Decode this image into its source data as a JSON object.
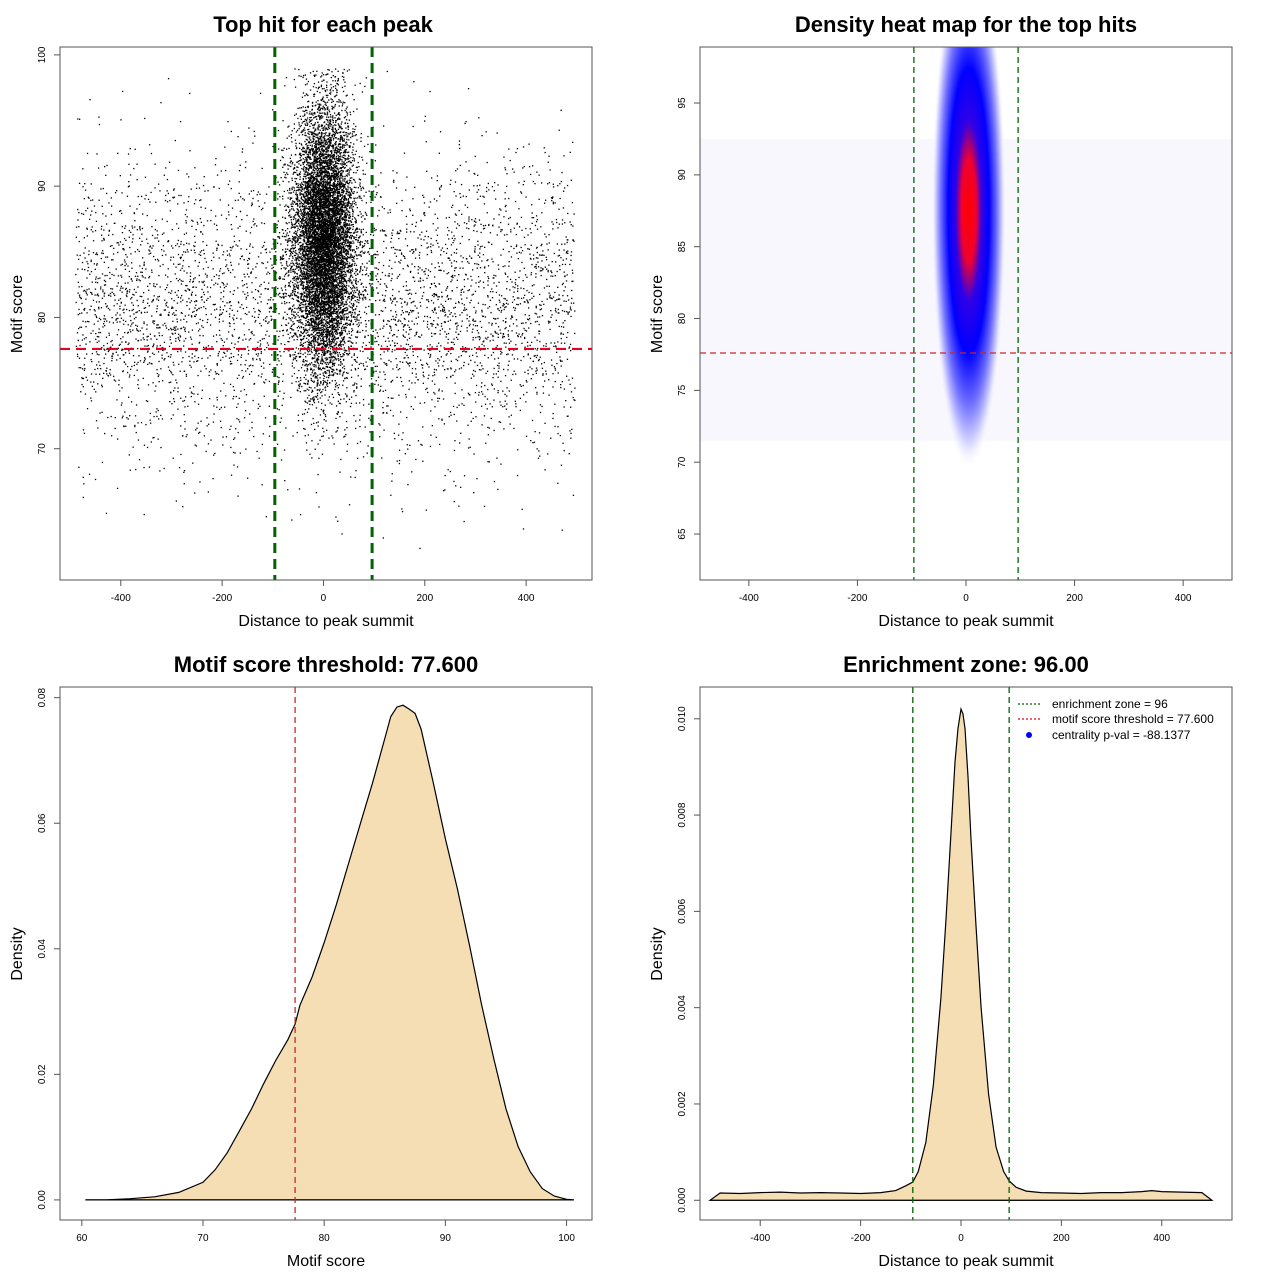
{
  "chart_data": [
    {
      "id": "p1",
      "type": "scatter",
      "title": "Top hit for each peak",
      "xlabel": "Distance to peak summit",
      "ylabel": "Motif score",
      "xlim": [
        -520,
        530
      ],
      "ylim": [
        60,
        100.6
      ],
      "xticks": [
        -400,
        -200,
        0,
        200,
        400
      ],
      "xtick_labels": [
        "-400",
        "-200",
        "0",
        "200",
        "400"
      ],
      "yticks": [
        70,
        80,
        90,
        100
      ],
      "ytick_labels": [
        "70",
        "80",
        "90",
        "100"
      ],
      "point_groups": [
        {
          "name": "",
          "x_center": 0,
          "x_sd": 30,
          "y_center": 86,
          "y_sd": 5,
          "count": 9000
        },
        {
          "name": "",
          "x_range": [
            -490,
            495
          ],
          "y_center": 81,
          "y_sd": 5.5,
          "count": 4500
        }
      ],
      "hlines": [
        {
          "y": 77.6,
          "color": "#e8001c",
          "style": "dashed"
        }
      ],
      "vlines": [
        {
          "x": -96,
          "color": "#006400",
          "style": "dashed"
        },
        {
          "x": 96,
          "color": "#006400",
          "style": "dashed"
        }
      ]
    },
    {
      "id": "p2",
      "type": "heatmap",
      "title": "Density heat map for the top hits",
      "xlabel": "Distance to peak summit",
      "ylabel": "Motif score",
      "xlim": [
        -490,
        490
      ],
      "ylim": [
        61.8,
        98.9
      ],
      "xticks": [
        -400,
        -200,
        0,
        200,
        400
      ],
      "xtick_labels": [
        "-400",
        "-200",
        "0",
        "200",
        "400"
      ],
      "yticks": [
        65,
        70,
        75,
        80,
        85,
        90,
        95
      ],
      "ytick_labels": [
        "65",
        "70",
        "75",
        "80",
        "85",
        "90",
        "95"
      ],
      "density_peak": {
        "x": 5,
        "y": 87.5,
        "x_sd": 30,
        "y_sd": 5
      },
      "colors": [
        "#ffffff",
        "#0000ff",
        "#ff0000"
      ],
      "hlines": [
        {
          "y": 77.6,
          "color": "#cd2626",
          "style": "dashed"
        }
      ],
      "vlines": [
        {
          "x": -96,
          "color": "#006400",
          "style": "dashed"
        },
        {
          "x": 96,
          "color": "#006400",
          "style": "dashed"
        }
      ]
    },
    {
      "id": "p3",
      "type": "area",
      "title": "Motif score threshold: 77.600",
      "xlabel": "Motif score",
      "ylabel": "Density",
      "xlim": [
        58.2,
        102.1
      ],
      "ylim": [
        -0.0032,
        0.0817
      ],
      "xticks": [
        60,
        70,
        80,
        90,
        100
      ],
      "xtick_labels": [
        "60",
        "70",
        "80",
        "90",
        "100"
      ],
      "yticks": [
        0,
        0.02,
        0.04,
        0.06,
        0.08
      ],
      "ytick_labels": [
        "0.00",
        "0.02",
        "0.04",
        "0.06",
        "0.08"
      ],
      "fill_color": "#f5deb3",
      "x": [
        60.3,
        62,
        64,
        66,
        68,
        70,
        71,
        72,
        73,
        74,
        75,
        76,
        77,
        77.6,
        78,
        79,
        80,
        81,
        82,
        83,
        84,
        85,
        85.5,
        86,
        86.5,
        87,
        87.5,
        88,
        89,
        90,
        91,
        92,
        93,
        94,
        95,
        96,
        97,
        98,
        99,
        100,
        100.6
      ],
      "y": [
        0,
        0,
        0.0002,
        0.0005,
        0.0012,
        0.0028,
        0.0048,
        0.0075,
        0.011,
        0.0145,
        0.0185,
        0.0222,
        0.0255,
        0.028,
        0.031,
        0.0355,
        0.041,
        0.047,
        0.0535,
        0.06,
        0.0665,
        0.0735,
        0.077,
        0.0785,
        0.0788,
        0.0782,
        0.0775,
        0.075,
        0.0665,
        0.0575,
        0.0495,
        0.0405,
        0.031,
        0.0225,
        0.0145,
        0.0085,
        0.0045,
        0.0018,
        0.0006,
        0.0001,
        0
      ],
      "vlines": [
        {
          "x": 77.6,
          "color": "#cd2626",
          "style": "dashed"
        }
      ]
    },
    {
      "id": "p4",
      "type": "area",
      "title": "Enrichment zone: 96.00",
      "xlabel": "Distance to peak summit",
      "ylabel": "Density",
      "xlim": [
        -520,
        540
      ],
      "ylim": [
        -0.00041,
        0.01066
      ],
      "xticks": [
        -400,
        -200,
        0,
        200,
        400
      ],
      "xtick_labels": [
        "-400",
        "-200",
        "0",
        "200",
        "400"
      ],
      "yticks": [
        0,
        0.002,
        0.004,
        0.006,
        0.008,
        0.01
      ],
      "ytick_labels": [
        "0.000",
        "0.002",
        "0.004",
        "0.006",
        "0.008",
        "0.010"
      ],
      "fill_color": "#f5deb3",
      "x": [
        -500,
        -480,
        -440,
        -400,
        -360,
        -320,
        -280,
        -240,
        -200,
        -160,
        -130,
        -110,
        -96,
        -85,
        -70,
        -55,
        -40,
        -30,
        -20,
        -12,
        -6,
        0,
        4,
        8,
        14,
        20,
        30,
        40,
        55,
        70,
        85,
        96,
        110,
        130,
        160,
        200,
        240,
        280,
        320,
        360,
        380,
        400,
        440,
        480,
        500
      ],
      "y": [
        0,
        0.00015,
        0.00014,
        0.00016,
        0.00017,
        0.00015,
        0.00016,
        0.00015,
        0.00014,
        0.00016,
        0.0002,
        0.0003,
        0.00038,
        0.0006,
        0.0012,
        0.0024,
        0.0042,
        0.0058,
        0.0076,
        0.0091,
        0.0098,
        0.0102,
        0.0101,
        0.0098,
        0.0088,
        0.0075,
        0.0057,
        0.004,
        0.0022,
        0.0011,
        0.0006,
        0.0004,
        0.00027,
        0.00019,
        0.00016,
        0.00015,
        0.00014,
        0.00016,
        0.00016,
        0.00018,
        0.0002,
        0.00018,
        0.00017,
        0.00016,
        0
      ],
      "vlines": [
        {
          "x": -96,
          "color": "#006400",
          "style": "dashed"
        },
        {
          "x": 96,
          "color": "#006400",
          "style": "dashed"
        }
      ],
      "legend": {
        "position": "top-right",
        "entries": [
          {
            "label": "enrichment zone = 96",
            "color": "#006400",
            "symbol": "dotted-line"
          },
          {
            "label": "motif score threshold = 77.600",
            "color": "#e8001c",
            "symbol": "dotted-line"
          },
          {
            "label": "centrality p-val = -88.1377",
            "color": "#0000ff",
            "symbol": "point"
          }
        ]
      }
    }
  ]
}
